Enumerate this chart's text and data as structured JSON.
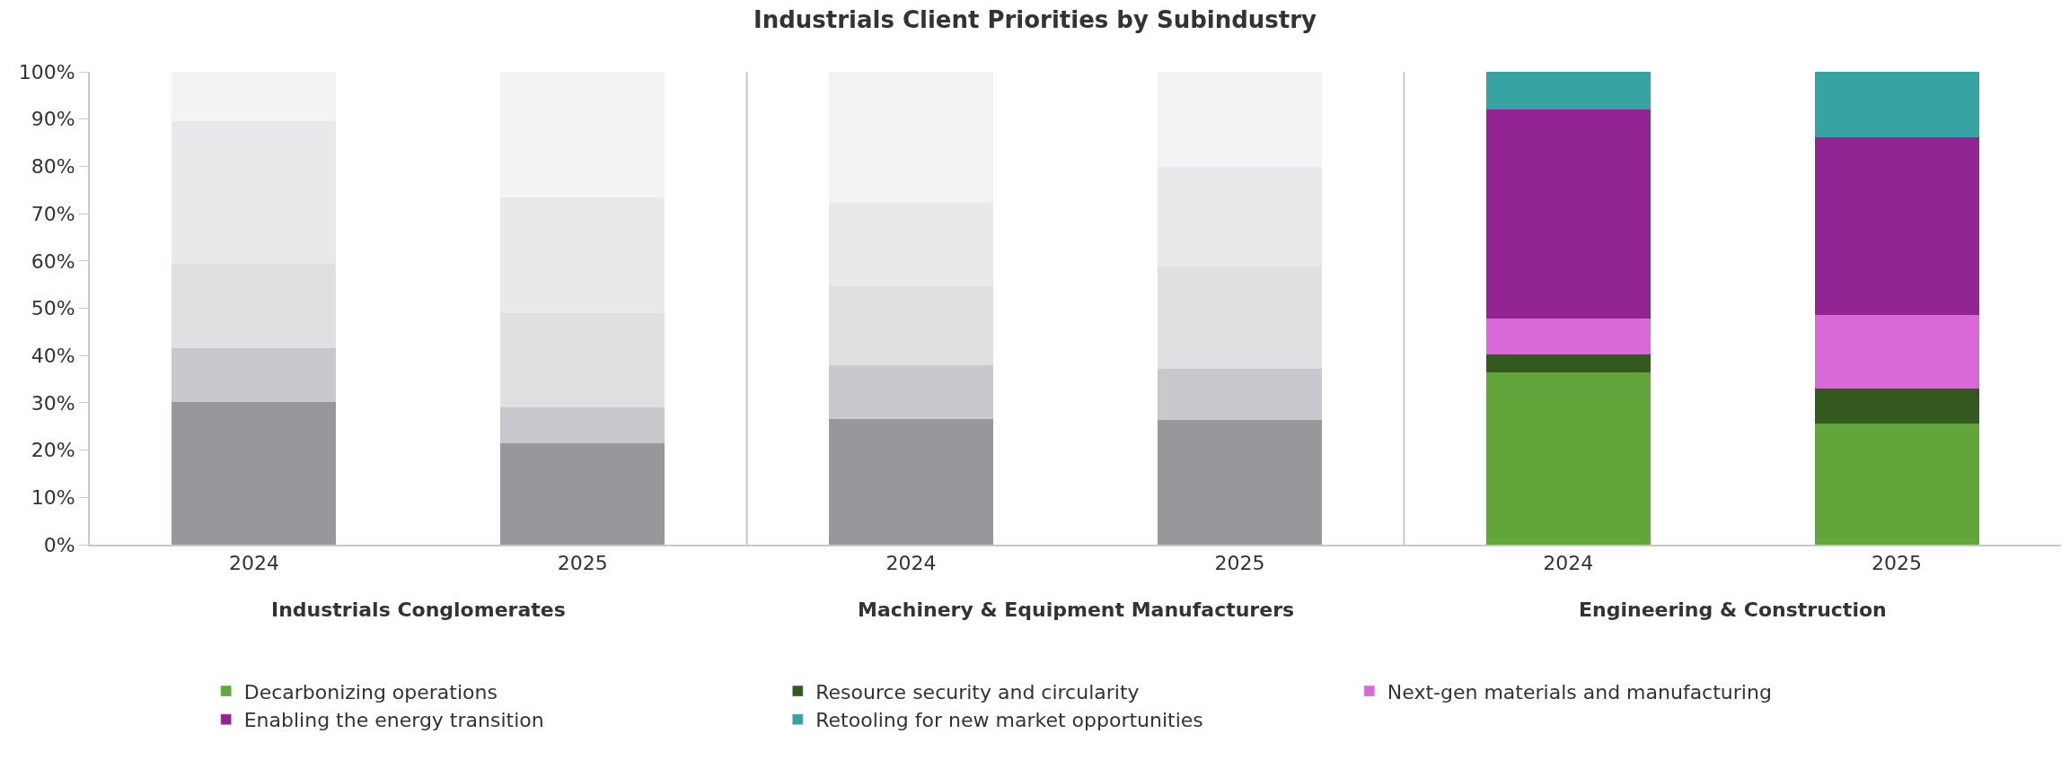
{
  "chart_data": {
    "type": "bar",
    "stacked": true,
    "title": "Industrials Client Priorities by Subindustry",
    "categories": [
      "2024",
      "2025",
      "2024",
      "2025",
      "2024",
      "2025"
    ],
    "annotations": [
      "Industrials Conglomerates",
      "Machinery & Equipment Manufacturers",
      "Engineering & Construction"
    ],
    "series": [
      {
        "name": "Decarbonizing operations",
        "color": "#62a53a",
        "colors": [
          "#97989c",
          "#97989c",
          "#97989c",
          "#97989c",
          "#62a53a",
          "#62a53a"
        ],
        "values": [
          30.2,
          21.5,
          26.6,
          26.4,
          36.5,
          25.6
        ]
      },
      {
        "name": "Resource security and circularity",
        "color": "#34591f",
        "colors": [
          "#c8c9cc",
          "#c8c9cc",
          "#c8c9cc",
          "#c8c9cc",
          "#34591f",
          "#34591f"
        ],
        "values": [
          11.4,
          7.6,
          11.4,
          10.7,
          3.7,
          7.5
        ]
      },
      {
        "name": "Next-gen materials and manufacturing",
        "color": "#d969d6",
        "colors": [
          "#dfe0e2",
          "#dfe0e2",
          "#dfe0e2",
          "#dfe0e2",
          "#d969d6",
          "#d969d6"
        ],
        "values": [
          17.7,
          19.9,
          16.7,
          21.7,
          7.7,
          15.4
        ]
      },
      {
        "name": "Enabling the energy transition",
        "color": "#932493",
        "colors": [
          "#e9e9eb",
          "#e9e9eb",
          "#e9e9eb",
          "#e9e9eb",
          "#932493",
          "#932493"
        ],
        "values": [
          30.3,
          24.4,
          17.6,
          21.0,
          44.2,
          37.7
        ]
      },
      {
        "name": "Retooling for new market opportunities",
        "color": "#37a3a3",
        "colors": [
          "#f3f3f3",
          "#f3f3f3",
          "#f3f3f3",
          "#f3f3f3",
          "#37a3a3",
          "#37a3a3"
        ],
        "values": [
          10.4,
          26.6,
          27.7,
          20.2,
          7.9,
          13.8
        ]
      }
    ],
    "ylim": [
      0,
      100
    ],
    "yticks": [
      {
        "value": 0,
        "label": "0%"
      },
      {
        "value": 10,
        "label": "10%"
      },
      {
        "value": 20,
        "label": "20%"
      },
      {
        "value": 30,
        "label": "30%"
      },
      {
        "value": 40,
        "label": "40%"
      },
      {
        "value": 50,
        "label": "50%"
      },
      {
        "value": 60,
        "label": "60%"
      },
      {
        "value": 70,
        "label": "70%"
      },
      {
        "value": 80,
        "label": "80%"
      },
      {
        "value": 90,
        "label": "90%"
      },
      {
        "value": 100,
        "label": "100%"
      }
    ],
    "legend": "bottom"
  }
}
